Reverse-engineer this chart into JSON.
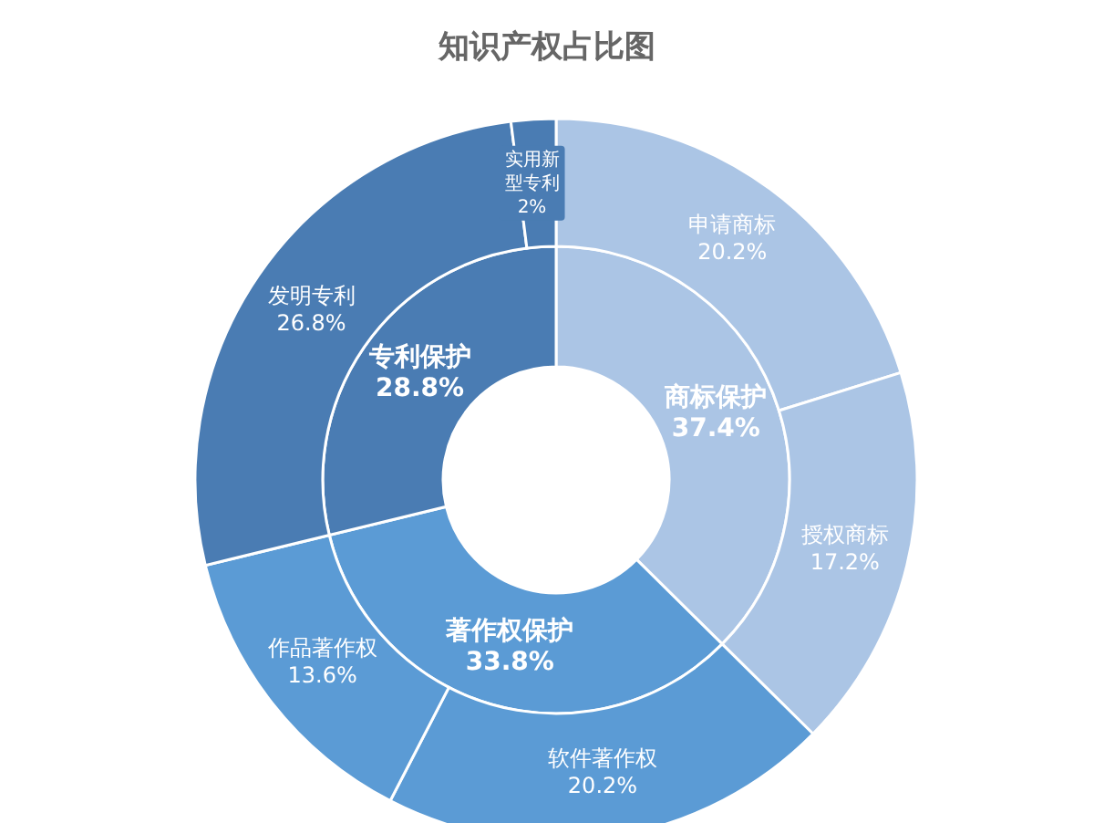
{
  "chart_data": [
    {
      "type": "donut",
      "title": "知识产权占比图",
      "categories": [
        "商标保护",
        "著作权保护",
        "专利保护"
      ],
      "values": [
        37.4,
        33.8,
        28.8
      ],
      "value_labels": [
        "37.4%",
        "33.8%",
        "28.8%"
      ],
      "colors": [
        "#abc5e5",
        "#5b9bd5",
        "#4a7cb3"
      ],
      "legend": false
    },
    {
      "type": "donut",
      "categories": [
        "申请商标",
        "授权商标",
        "软件著作权",
        "作品著作权",
        "发明专利",
        "实用新型专利"
      ],
      "values": [
        20.2,
        17.2,
        20.2,
        13.6,
        26.8,
        2
      ],
      "value_labels": [
        "20.2%",
        "17.2%",
        "20.2%",
        "13.6%",
        "26.8%",
        "2%"
      ],
      "colors": [
        "#abc5e5",
        "#abc5e5",
        "#5b9bd5",
        "#5b9bd5",
        "#4a7cb3",
        "#4a7cb3"
      ],
      "legend": false
    }
  ]
}
